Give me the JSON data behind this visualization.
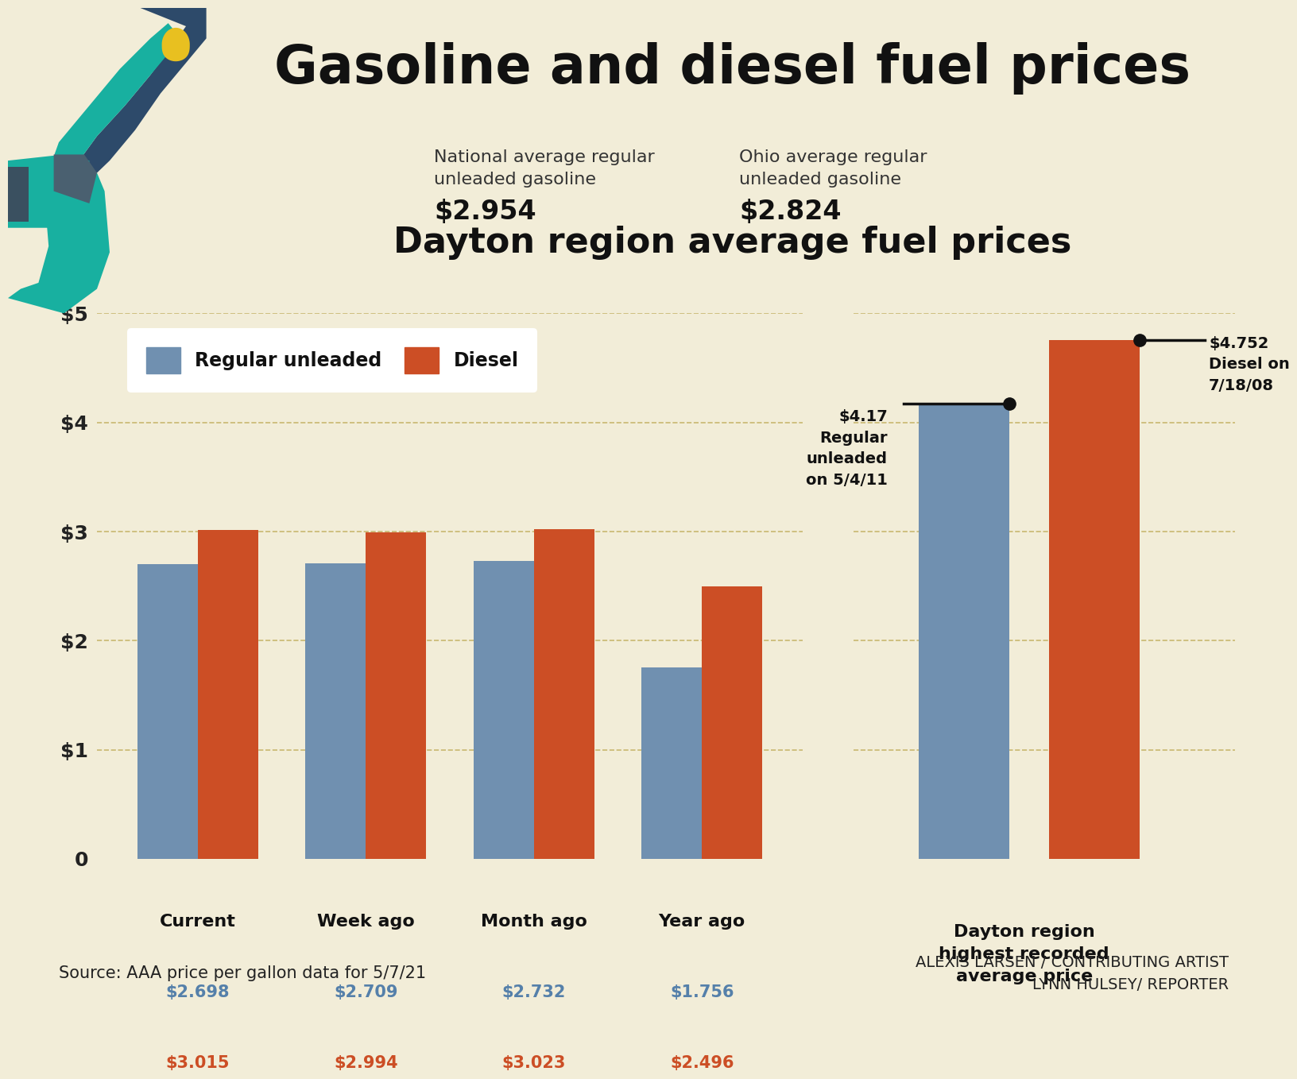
{
  "bg_color": "#f2edd8",
  "title": "Gasoline and diesel fuel prices",
  "subtitle": "Dayton region average fuel prices",
  "national_label": "National average regular\nunleaded gasoline",
  "national_value": "$2.954",
  "ohio_label": "Ohio average regular\nunleaded gasoline",
  "ohio_value": "$2.824",
  "bar_categories": [
    "Current",
    "Week ago",
    "Month ago",
    "Year ago"
  ],
  "unleaded_values": [
    2.698,
    2.709,
    2.732,
    1.756
  ],
  "diesel_values": [
    3.015,
    2.994,
    3.023,
    2.496
  ],
  "unleaded_labels": [
    "$2.698",
    "$2.709",
    "$2.732",
    "$1.756"
  ],
  "diesel_labels": [
    "$3.015",
    "$2.994",
    "$3.023",
    "$2.496"
  ],
  "record_unleaded": 4.17,
  "record_diesel": 4.752,
  "record_unleaded_label": "$4.17\nRegular\nunleaded\non 5/4/11",
  "record_diesel_label": "$4.752\nDiesel on\n7/18/08",
  "record_section_label": "Dayton region\nhighest recorded\naverage price",
  "unleaded_color": "#7090b0",
  "diesel_color": "#cc4e25",
  "unleaded_label_color": "#5580aa",
  "diesel_label_color": "#cc4e25",
  "yticks": [
    0,
    1,
    2,
    3,
    4,
    5
  ],
  "ylabels": [
    "0",
    "$1",
    "$2",
    "$3",
    "$4",
    "$5"
  ],
  "source_text": "Source: AAA price per gallon data for 5/7/21",
  "credit_text": "ALEXIS LARSEN / CONTRIBUTING ARTIST\nLYNN HULSEY/ REPORTER",
  "drop_color": "#e8c020",
  "nozzle_teal": "#18b0a0",
  "nozzle_dark": "#2d4a6a",
  "grid_color": "#c8b870",
  "divider_color": "#c8b870"
}
